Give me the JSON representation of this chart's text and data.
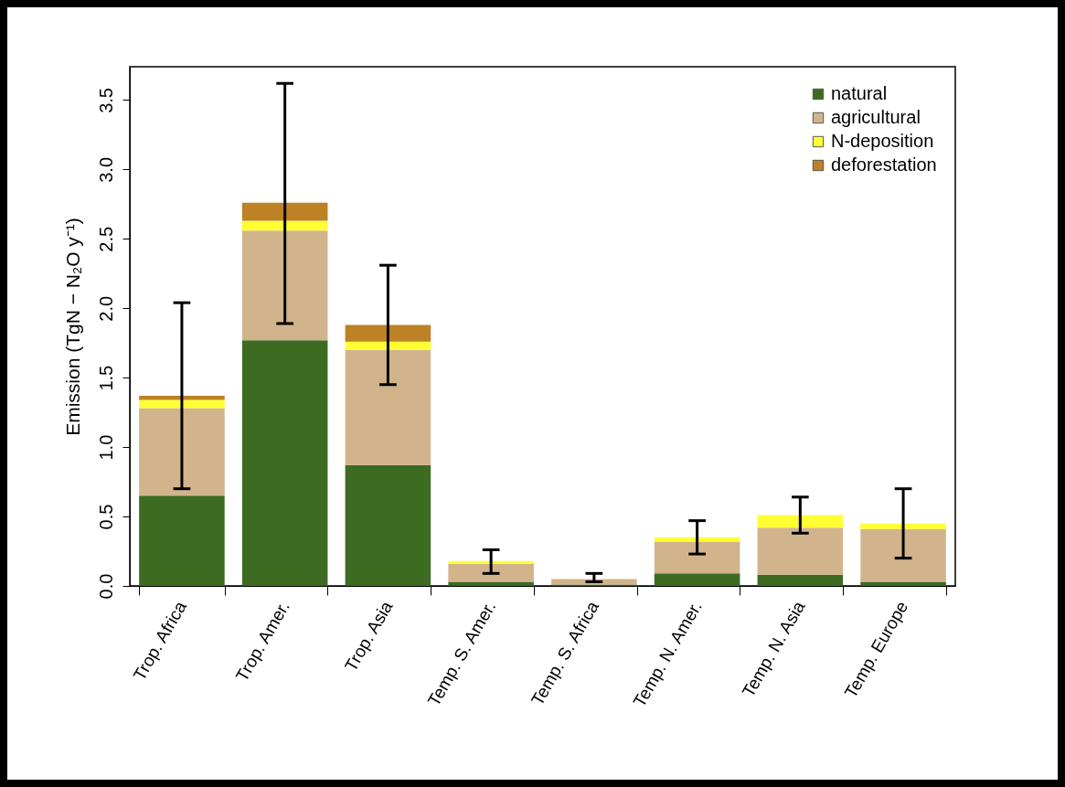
{
  "chart_data": {
    "type": "bar",
    "stacked": true,
    "ylabel": "Emission  (TgN − N₂O y⁻¹)",
    "categories": [
      "Trop. Africa",
      "Trop. Amer.",
      "Trop. Asia",
      "Temp. S. Amer.",
      "Temp. S. Africa",
      "Temp. N. Amer.",
      "Temp. N. Asia",
      "Temp. Europe"
    ],
    "series": [
      {
        "name": "natural",
        "color": "#3d6b22",
        "values": [
          0.65,
          1.77,
          0.87,
          0.03,
          0.01,
          0.09,
          0.08,
          0.03
        ]
      },
      {
        "name": "agricultural",
        "color": "#d2b48c",
        "values": [
          0.63,
          0.79,
          0.83,
          0.13,
          0.04,
          0.23,
          0.34,
          0.38
        ],
        "errors": [
          [
            0.7,
            2.04
          ],
          [
            1.89,
            3.62
          ],
          [
            1.45,
            2.31
          ],
          [
            0.09,
            0.26
          ],
          [
            0.03,
            0.09
          ],
          [
            0.23,
            0.47
          ],
          [
            0.38,
            0.64
          ],
          [
            0.2,
            0.7
          ]
        ]
      },
      {
        "name": "N-deposition",
        "color": "#ffff33",
        "values": [
          0.06,
          0.07,
          0.06,
          0.02,
          null,
          0.03,
          0.09,
          0.04
        ]
      },
      {
        "name": "deforestation",
        "color": "#bd8126",
        "values": [
          0.03,
          0.13,
          0.12,
          null,
          null,
          null,
          null,
          null
        ]
      }
    ],
    "ylim": [
      0,
      3.74
    ],
    "yticks": [
      {
        "value": 0,
        "label": "0.0"
      },
      {
        "value": 0.5,
        "label": "0.5"
      },
      {
        "value": 1,
        "label": "1.0"
      },
      {
        "value": 1.5,
        "label": "1.5"
      },
      {
        "value": 2,
        "label": "2.0"
      },
      {
        "value": 2.5,
        "label": "2.5"
      },
      {
        "value": 3,
        "label": "3.0"
      },
      {
        "value": 3.5,
        "label": "3.5"
      }
    ],
    "legend": "top right",
    "grid": false
  }
}
